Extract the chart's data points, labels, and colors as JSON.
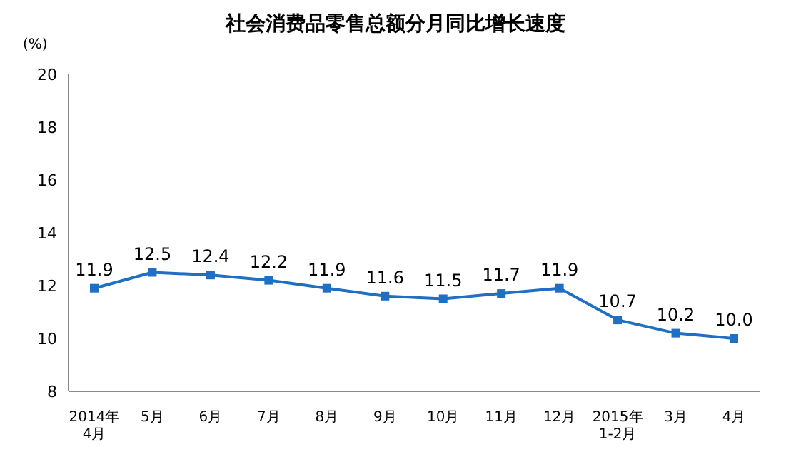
{
  "chart_data": {
    "type": "line",
    "title": "社会消费品零售总额分月同比增长速度",
    "ylabel": "(%)",
    "categories": [
      "2014年\n4月",
      "5月",
      "6月",
      "7月",
      "8月",
      "9月",
      "10月",
      "11月",
      "12月",
      "2015年\n1-2月",
      "3月",
      "4月"
    ],
    "series": [
      {
        "color": "#1f6fc5",
        "values": [
          11.9,
          12.5,
          12.4,
          12.2,
          11.9,
          11.6,
          11.5,
          11.7,
          11.9,
          10.7,
          10.2,
          10.0
        ],
        "value_labels": [
          "11.9",
          "12.5",
          "12.4",
          "12.2",
          "11.9",
          "11.6",
          "11.5",
          "11.7",
          "11.9",
          "10.7",
          "10.2",
          "10.0"
        ]
      }
    ],
    "ylim": [
      8,
      20
    ],
    "yticks": [
      8,
      10,
      12,
      14,
      16,
      18,
      20
    ],
    "grid": false,
    "legend": false,
    "marker": "square",
    "line_style": "solid"
  }
}
